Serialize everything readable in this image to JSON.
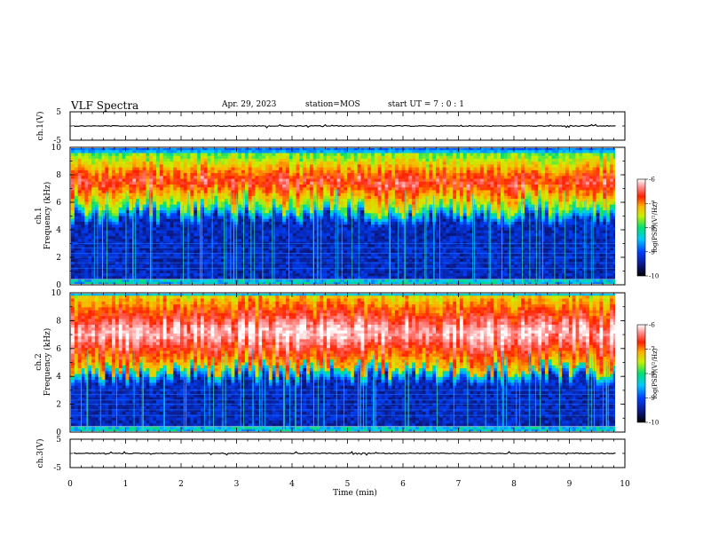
{
  "header": {
    "title": "VLF Spectra",
    "date": "Apr. 29, 2023",
    "station": "station=MOS",
    "start": "start UT =  7 : 0  : 1"
  },
  "chart_data": [
    {
      "type": "line",
      "name": "waveform-ch1",
      "ylabel": "ch.1(V)",
      "ylim": [
        -5,
        5
      ],
      "yticks": [
        "5",
        "-5"
      ],
      "xlim": [
        0,
        10
      ],
      "level": 0
    },
    {
      "type": "heatmap",
      "name": "spectrogram-ch1",
      "ylabel": "ch.1\nFrequency (kHz)",
      "ylim": [
        0,
        10
      ],
      "yticks": [
        "0",
        "2",
        "4",
        "6",
        "8",
        "10"
      ],
      "xlim": [
        0,
        9.85
      ],
      "band_khz": [
        5.5,
        9.5
      ],
      "colorbar": {
        "label": "log(PSD)(V²/Hz)",
        "ticks": [
          "-6",
          "-7",
          "-8",
          "-9",
          "-10"
        ],
        "range": [
          -10,
          -6
        ]
      }
    },
    {
      "type": "heatmap",
      "name": "spectrogram-ch2",
      "ylabel": "ch.2\nFrequency (kHz)",
      "ylim": [
        0,
        10
      ],
      "yticks": [
        "0",
        "2",
        "4",
        "6",
        "8",
        "10"
      ],
      "xlim": [
        0,
        9.85
      ],
      "band_khz": [
        4.5,
        9.8
      ],
      "colorbar": {
        "label": "log(PSD)(V²/Hz)",
        "ticks": [
          "-6",
          "-7",
          "-8",
          "-9",
          "-10"
        ],
        "range": [
          -10,
          -6
        ]
      }
    },
    {
      "type": "line",
      "name": "waveform-ch3",
      "ylabel": "ch.3(V)",
      "ylim": [
        -5,
        5
      ],
      "yticks": [
        "5",
        "-5"
      ],
      "xlim": [
        0,
        10
      ],
      "level": 0
    }
  ],
  "xaxis": {
    "label": "Time (min)",
    "ticks": [
      "0",
      "1",
      "2",
      "3",
      "4",
      "5",
      "6",
      "7",
      "8",
      "9",
      "10"
    ]
  }
}
